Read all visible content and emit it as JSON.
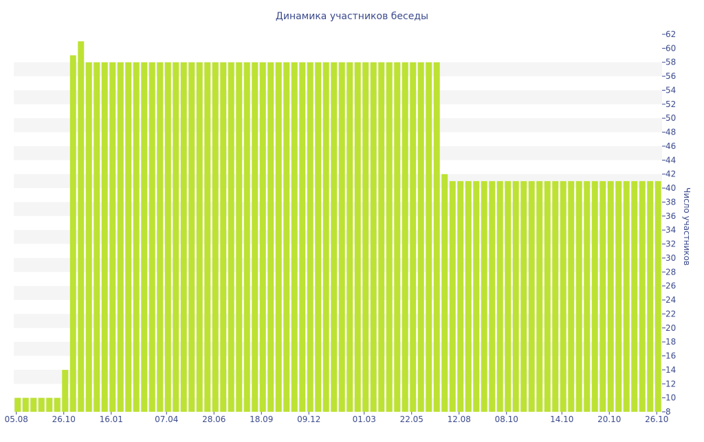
{
  "chart_data": {
    "type": "bar",
    "title": "Динамика участников беседы",
    "xlabel": "",
    "ylabel": "Число участников",
    "ylim": [
      8,
      62
    ],
    "ytick_step": 2,
    "y_axis_side": "right",
    "grid": "alternating horizontal bands",
    "legend": "none",
    "x_tick_labels": [
      "05.08",
      "26.10",
      "16.01",
      "07.04",
      "28.06",
      "18.09",
      "09.12",
      "01.03",
      "22.05",
      "12.08",
      "08.10",
      "14.10",
      "20.10",
      "26.10"
    ],
    "values": [
      10,
      10,
      10,
      10,
      10,
      10,
      14,
      59,
      61,
      58,
      58,
      58,
      58,
      58,
      58,
      58,
      58,
      58,
      58,
      58,
      58,
      58,
      58,
      58,
      58,
      58,
      58,
      58,
      58,
      58,
      58,
      58,
      58,
      58,
      58,
      58,
      58,
      58,
      58,
      58,
      58,
      58,
      58,
      58,
      58,
      58,
      58,
      58,
      58,
      58,
      58,
      58,
      58,
      58,
      42,
      41,
      41,
      41,
      41,
      41,
      41,
      41,
      41,
      41,
      41,
      41,
      41,
      41,
      41,
      41,
      41,
      41,
      41,
      41,
      41,
      41,
      41,
      41,
      41,
      41,
      41,
      41
    ],
    "colors": {
      "bar": "#bde233",
      "text": "#3b4a8c",
      "band": "#f5f5f5"
    }
  }
}
